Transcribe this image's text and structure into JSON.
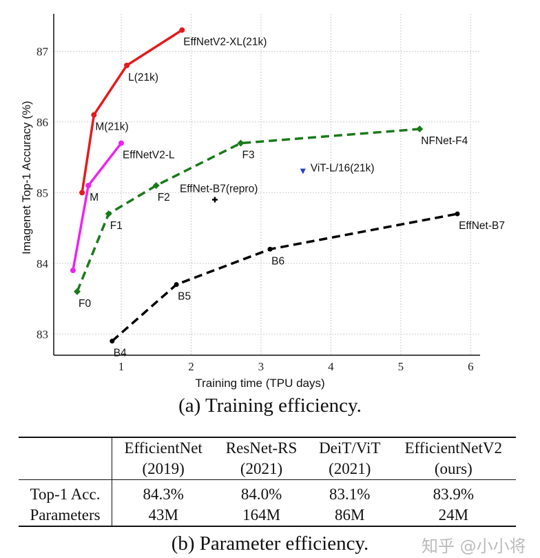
{
  "chart_data": {
    "type": "line",
    "caption": "(a) Training efficiency.",
    "xlabel": "Training time (TPU days)",
    "ylabel": "Imagenet Top-1 Accuracy (%)",
    "xlim": [
      0,
      6.1
    ],
    "ylim": [
      82.7,
      87.53
    ],
    "xticks": [
      1,
      2,
      3,
      4,
      5,
      6
    ],
    "yticks": [
      83,
      84,
      85,
      86,
      87
    ],
    "grid": true,
    "series": [
      {
        "color": "#e41a1c",
        "style": "solid",
        "marker": "circle",
        "points": [
          {
            "x": 0.44,
            "y": 85.0,
            "label": ""
          },
          {
            "x": 0.61,
            "y": 86.1,
            "label": "M(21k)"
          },
          {
            "x": 1.08,
            "y": 86.8,
            "label": "L(21k)"
          },
          {
            "x": 1.87,
            "y": 87.3,
            "label": "EffNetV2-XL(21k)"
          }
        ]
      },
      {
        "color": "#ee22ee",
        "style": "solid",
        "marker": "circle",
        "points": [
          {
            "x": 0.31,
            "y": 83.9,
            "label": ""
          },
          {
            "x": 0.53,
            "y": 85.1,
            "label": "M"
          },
          {
            "x": 1.0,
            "y": 85.7,
            "label": "EffNetV2-L"
          }
        ]
      },
      {
        "color": "#1a7a1a",
        "style": "dashed",
        "marker": "diamond",
        "points": [
          {
            "x": 0.37,
            "y": 83.6,
            "label": "F0"
          },
          {
            "x": 0.82,
            "y": 84.7,
            "label": "F1"
          },
          {
            "x": 1.5,
            "y": 85.1,
            "label": "F2"
          },
          {
            "x": 2.71,
            "y": 85.7,
            "label": "F3"
          },
          {
            "x": 5.27,
            "y": 85.9,
            "label": "NFNet-F4"
          }
        ]
      },
      {
        "color": "#000000",
        "style": "dashed",
        "marker": "circle",
        "points": [
          {
            "x": 0.87,
            "y": 82.9,
            "label": "B4"
          },
          {
            "x": 1.79,
            "y": 83.7,
            "label": "B5"
          },
          {
            "x": 3.13,
            "y": 84.2,
            "label": "B6"
          },
          {
            "x": 5.81,
            "y": 84.7,
            "label": "EffNet-B7"
          }
        ]
      }
    ],
    "points": [
      {
        "x": 3.6,
        "y": 85.3,
        "label": "ViT-L/16(21k)",
        "color": "#1f3fd0",
        "marker": "triangle-down"
      },
      {
        "x": 2.34,
        "y": 84.9,
        "label": "EffNet-B7(repro)",
        "color": "#000000",
        "marker": "plus"
      }
    ]
  },
  "table": {
    "caption": "(b) Parameter efficiency.",
    "columns": [
      {
        "name": "EfficientNet",
        "sub": "(2019)"
      },
      {
        "name": "ResNet-RS",
        "sub": "(2021)"
      },
      {
        "name": "DeiT/ViT",
        "sub": "(2021)"
      },
      {
        "name": "EfficientNetV2",
        "sub": "(ours)"
      }
    ],
    "rows": [
      {
        "label": "Top-1 Acc.",
        "values": [
          "84.3%",
          "84.0%",
          "83.1%",
          "83.9%"
        ]
      },
      {
        "label": "Parameters",
        "values": [
          "43M",
          "164M",
          "86M",
          "24M"
        ]
      }
    ]
  },
  "watermark": "知乎 @小小将"
}
